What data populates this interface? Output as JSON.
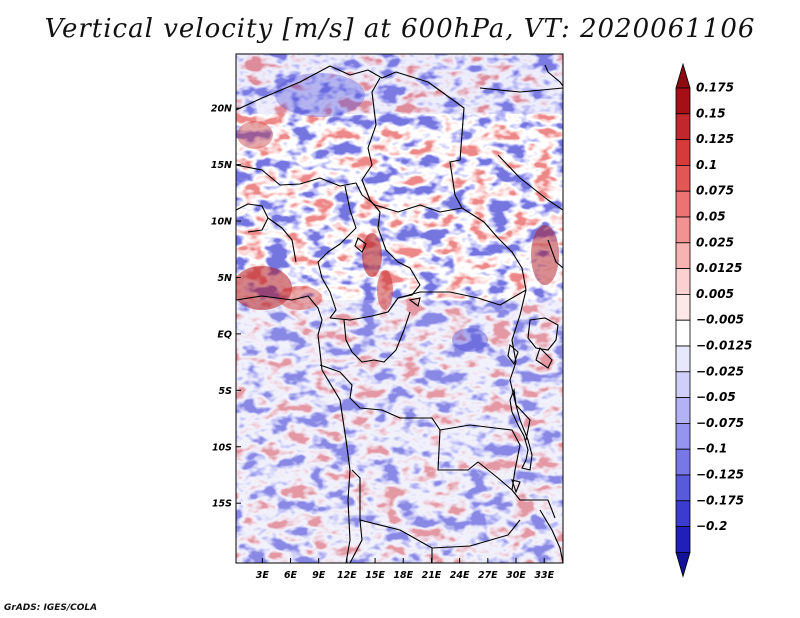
{
  "title": "Vertical velocity [m/s] at 600hPa, VT: 2020061106",
  "credit": "GrADS: IGES/COLA",
  "map": {
    "lat_labels": [
      {
        "label": "20N",
        "lat": 20
      },
      {
        "label": "15N",
        "lat": 15
      },
      {
        "label": "10N",
        "lat": 10
      },
      {
        "label": "5N",
        "lat": 5
      },
      {
        "label": "EQ",
        "lat": 0
      },
      {
        "label": "5S",
        "lat": -5
      },
      {
        "label": "10S",
        "lat": -10
      },
      {
        "label": "15S",
        "lat": -15
      }
    ],
    "lon_labels": [
      {
        "label": "3E",
        "lon": 3
      },
      {
        "label": "6E",
        "lon": 6
      },
      {
        "label": "9E",
        "lon": 9
      },
      {
        "label": "12E",
        "lon": 12
      },
      {
        "label": "15E",
        "lon": 15
      },
      {
        "label": "18E",
        "lon": 18
      },
      {
        "label": "21E",
        "lon": 21
      },
      {
        "label": "24E",
        "lon": 24
      },
      {
        "label": "27E",
        "lon": 27
      },
      {
        "label": "30E",
        "lon": 30
      },
      {
        "label": "33E",
        "lon": 33
      }
    ],
    "lon_range": [
      0.2,
      35
    ],
    "lat_range": [
      -20.3,
      24.8
    ]
  },
  "colorbar": {
    "levels": [
      {
        "label": "0.175",
        "color": "#a50f15"
      },
      {
        "label": "0.15",
        "color": "#c1272d"
      },
      {
        "label": "0.125",
        "color": "#d63a3a"
      },
      {
        "label": "0.1",
        "color": "#e25656"
      },
      {
        "label": "0.075",
        "color": "#ec7373"
      },
      {
        "label": "0.05",
        "color": "#f29292"
      },
      {
        "label": "0.025",
        "color": "#f7b2b2"
      },
      {
        "label": "0.0125",
        "color": "#fbd0d0"
      },
      {
        "label": "0.005",
        "color": "#fde8e8"
      },
      {
        "label": "−0.005",
        "color": "#ffffff"
      },
      {
        "label": "−0.0125",
        "color": "#e8e8fd"
      },
      {
        "label": "−0.025",
        "color": "#cfcffa"
      },
      {
        "label": "−0.05",
        "color": "#b2b2f5"
      },
      {
        "label": "−0.075",
        "color": "#9595ee"
      },
      {
        "label": "−0.1",
        "color": "#7777e6"
      },
      {
        "label": "−0.125",
        "color": "#5959dc"
      },
      {
        "label": "−0.175",
        "color": "#3b3bcf"
      },
      {
        "label": "−0.2",
        "color": "#2020b8"
      }
    ],
    "top_cap_color": "#8c0b10",
    "bottom_cap_color": "#12129a"
  }
}
